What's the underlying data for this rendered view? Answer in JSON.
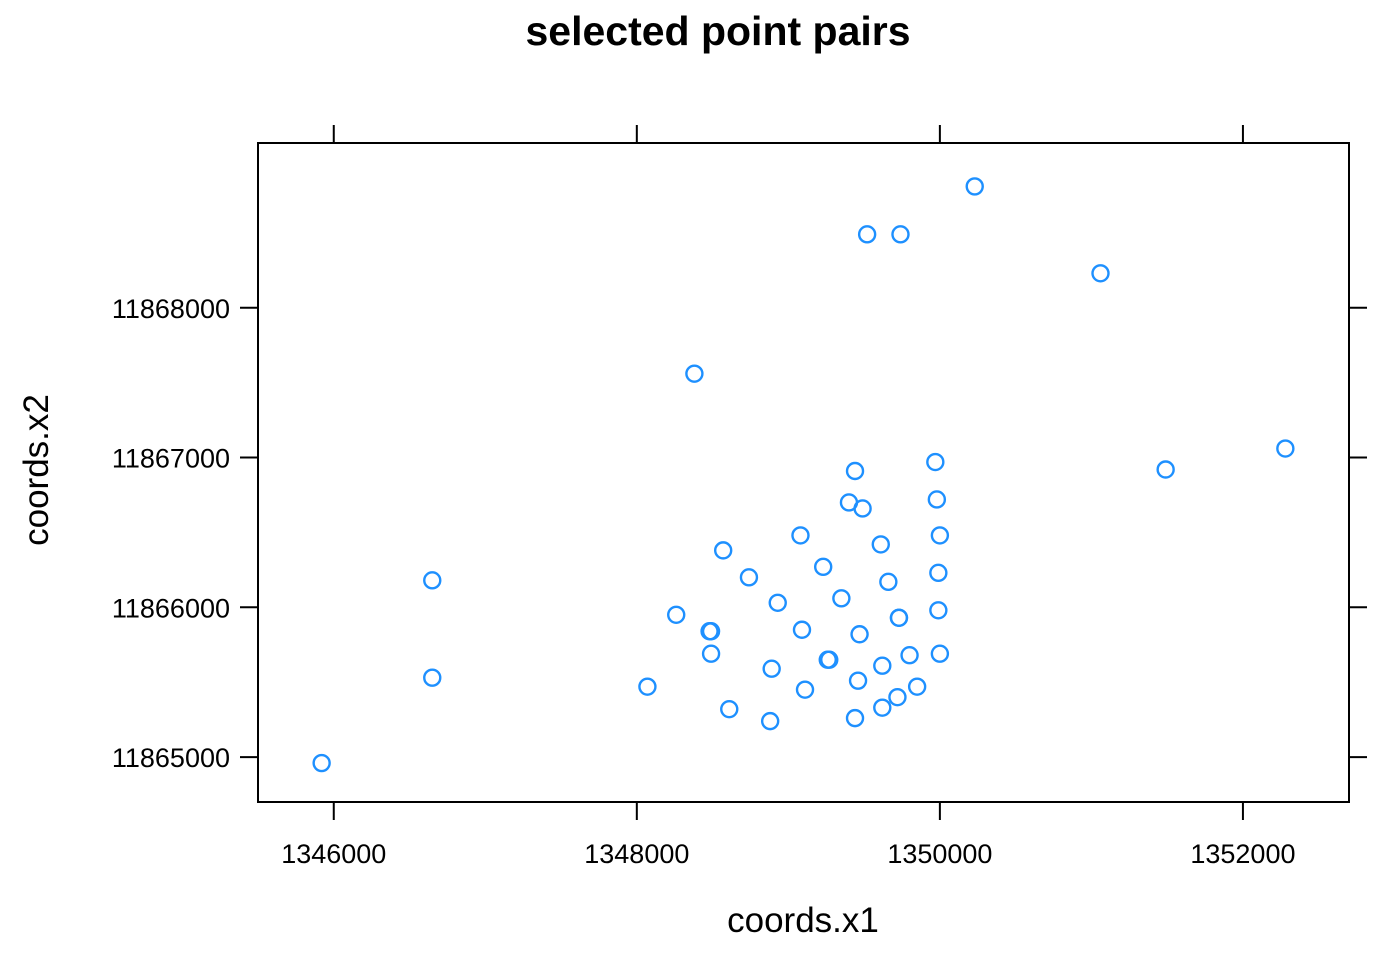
{
  "chart_data": {
    "type": "scatter",
    "title": "selected point pairs",
    "xlabel": "coords.x1",
    "ylabel": "coords.x2",
    "xlim": [
      1345500,
      1352700
    ],
    "ylim": [
      11864700,
      11869100
    ],
    "xticks": [
      {
        "value": 1346000,
        "label": "1346000"
      },
      {
        "value": 1348000,
        "label": "1348000"
      },
      {
        "value": 1350000,
        "label": "1350000"
      },
      {
        "value": 1352000,
        "label": "1352000"
      }
    ],
    "yticks": [
      {
        "value": 11865000,
        "label": "11865000"
      },
      {
        "value": 11866000,
        "label": "11866000"
      },
      {
        "value": 11867000,
        "label": "11867000"
      },
      {
        "value": 11868000,
        "label": "11868000"
      }
    ],
    "grid": false,
    "marker": "open-circle",
    "point_color": "#1E90FF",
    "x": [
      1345920,
      1346650,
      1346650,
      1348070,
      1348260,
      1348380,
      1348480,
      1348490,
      1348490,
      1348570,
      1348610,
      1348740,
      1348880,
      1348890,
      1348930,
      1349080,
      1349090,
      1349110,
      1349230,
      1349260,
      1349270,
      1349350,
      1349400,
      1349440,
      1349440,
      1349460,
      1349470,
      1349490,
      1349520,
      1349610,
      1349620,
      1349620,
      1349660,
      1349720,
      1349730,
      1349730,
      1349740,
      1349800,
      1349850,
      1349970,
      1349980,
      1349990,
      1349990,
      1350000,
      1350000,
      1350230,
      1351060,
      1351490,
      1352280
    ],
    "y": [
      11864960,
      11865530,
      11866180,
      11865470,
      11865950,
      11867560,
      11865840,
      11865840,
      11865690,
      11866380,
      11865320,
      11866200,
      11865240,
      11865590,
      11866030,
      11866480,
      11865850,
      11865450,
      11866270,
      11865650,
      11865650,
      11866060,
      11866700,
      11865260,
      11866910,
      11865510,
      11865820,
      11866660,
      11868490,
      11866420,
      11865330,
      11865610,
      11866170,
      11865400,
      11865930,
      11865930,
      11868490,
      11865680,
      11865470,
      11866970,
      11866720,
      11866230,
      11865980,
      11866480,
      11865690,
      11868810,
      11868230,
      11866920,
      11867060
    ]
  }
}
